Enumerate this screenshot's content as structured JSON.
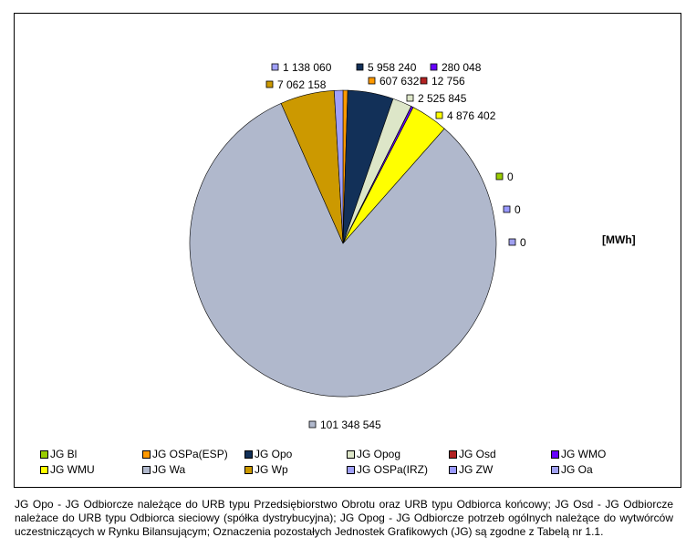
{
  "chart_data": {
    "type": "pie",
    "unit_label": "[MWh]",
    "slices": [
      {
        "name": "JG Bl",
        "value": 0,
        "label": "0",
        "color": "#99cc00"
      },
      {
        "name": "JG OSPa(ESP)",
        "value": 607632,
        "label": "607 632",
        "color": "#ff9900"
      },
      {
        "name": "JG Opo",
        "value": 5958240,
        "label": "5 958 240",
        "color": "#123058"
      },
      {
        "name": "JG Opog",
        "value": 2525845,
        "label": "2 525 845",
        "color": "#dde6c8"
      },
      {
        "name": "JG Osd",
        "value": 12756,
        "label": "12 756",
        "color": "#b22222"
      },
      {
        "name": "JG WMO",
        "value": 280048,
        "label": "280 048",
        "color": "#6600ff"
      },
      {
        "name": "JG WMU",
        "value": 4876402,
        "label": "4 876 402",
        "color": "#ffff00"
      },
      {
        "name": "JG Wa",
        "value": 101348545,
        "label": "101 348 545",
        "color": "#b0b8cc"
      },
      {
        "name": "JG Wp",
        "value": 7062158,
        "label": "7 062 158",
        "color": "#cc9900"
      },
      {
        "name": "JG OSPa(IRZ)",
        "value": 1138060,
        "label": "1 138 060",
        "color": "#a0a0f8"
      },
      {
        "name": "JG ZW",
        "value": 0,
        "label": "0",
        "color": "#9999ff"
      },
      {
        "name": "JG Oa",
        "value": 0,
        "label": "0",
        "color": "#a0a0f0"
      }
    ],
    "legend_position": "bottom"
  },
  "footnote": "JG Opo - JG Odbiorcze należące do URB typu Przedsiębiorstwo Obrotu oraz URB typu Odbiorca końcowy; JG Osd - JG Odbiorcze należace do URB typu Odbiorca sieciowy (spółka dystrybucyjna); JG Opog - JG Odbiorcze potrzeb ogólnych należące do wytwórców uczestniczących w Rynku Bilansującym; Oznaczenia pozostałych Jednostek Grafikowych (JG) są zgodne z Tabelą nr 1.1."
}
